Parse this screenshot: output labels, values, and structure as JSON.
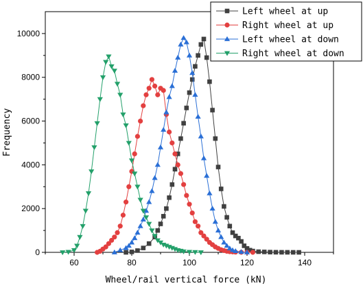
{
  "chart_data": {
    "type": "line",
    "title": "",
    "xlabel": "Wheel/rail vertical force (kN)",
    "ylabel": "Frequency",
    "xlim": [
      50,
      150
    ],
    "ylim": [
      0,
      11000
    ],
    "xticks": [
      60,
      80,
      100,
      120,
      140
    ],
    "yticks": [
      0,
      2000,
      4000,
      6000,
      8000,
      10000
    ],
    "grid": false,
    "legend_position": "top-right",
    "series": [
      {
        "name": "Left wheel at up",
        "color": "#404040",
        "marker": "square",
        "x": [
          78,
          80,
          82,
          84,
          86,
          88,
          89,
          90,
          91,
          92,
          93,
          94,
          95,
          96,
          97,
          98,
          99,
          100,
          101,
          102,
          103,
          104,
          105,
          106,
          107,
          108,
          109,
          110,
          111,
          112,
          113,
          114,
          115,
          116,
          117,
          118,
          119,
          120,
          121,
          122,
          124,
          126,
          128,
          130,
          132,
          134,
          136,
          138
        ],
        "y": [
          0,
          20,
          80,
          200,
          400,
          700,
          1000,
          1300,
          1650,
          2000,
          2500,
          3100,
          3800,
          4500,
          5200,
          5900,
          6600,
          7300,
          7900,
          8500,
          9000,
          9500,
          9750,
          8900,
          7800,
          6500,
          5200,
          3900,
          2900,
          2100,
          1600,
          1200,
          900,
          750,
          650,
          500,
          300,
          180,
          100,
          60,
          30,
          20,
          10,
          5,
          3,
          2,
          1,
          0
        ]
      },
      {
        "name": "Right wheel at up",
        "color": "#e34040",
        "marker": "circle",
        "x": [
          68,
          69,
          70,
          71,
          72,
          73,
          74,
          75,
          76,
          77,
          78,
          79,
          80,
          81,
          82,
          83,
          84,
          85,
          86,
          87,
          88,
          89,
          90,
          91,
          92,
          93,
          94,
          95,
          96,
          97,
          98,
          99,
          100,
          101,
          102,
          103,
          104,
          105,
          106,
          107,
          108,
          109,
          110,
          111,
          112,
          113,
          114,
          115,
          116,
          118,
          120,
          122
        ],
        "y": [
          0,
          50,
          150,
          250,
          400,
          550,
          700,
          900,
          1200,
          1700,
          2300,
          3000,
          3700,
          4500,
          5300,
          6000,
          6700,
          7200,
          7500,
          7900,
          7600,
          7200,
          7500,
          7400,
          6300,
          5500,
          5000,
          4500,
          4000,
          3600,
          3100,
          2600,
          2200,
          1800,
          1400,
          1200,
          900,
          750,
          600,
          450,
          350,
          250,
          180,
          120,
          80,
          50,
          30,
          20,
          10,
          5,
          2,
          0
        ]
      },
      {
        "name": "Left wheel at down",
        "color": "#2a6fd6",
        "marker": "triangle-up",
        "x": [
          74,
          76,
          78,
          79,
          80,
          81,
          82,
          83,
          84,
          85,
          86,
          87,
          88,
          89,
          90,
          91,
          92,
          93,
          94,
          95,
          96,
          97,
          98,
          99,
          100,
          101,
          102,
          103,
          104,
          105,
          106,
          107,
          108,
          109,
          110,
          111,
          112,
          113,
          114,
          115,
          116,
          118,
          120
        ],
        "y": [
          0,
          100,
          200,
          300,
          450,
          650,
          900,
          1200,
          1500,
          1900,
          2300,
          2800,
          3400,
          4000,
          4800,
          5600,
          6400,
          7100,
          7600,
          8300,
          8900,
          9500,
          9800,
          9600,
          9000,
          8200,
          7200,
          6200,
          5300,
          4300,
          3500,
          2700,
          2000,
          1400,
          1000,
          700,
          450,
          300,
          180,
          100,
          60,
          20,
          0
        ]
      },
      {
        "name": "Right wheel at down",
        "color": "#23a06a",
        "marker": "triangle-down",
        "x": [
          56,
          58,
          60,
          61,
          62,
          63,
          64,
          65,
          66,
          67,
          68,
          69,
          70,
          71,
          72,
          73,
          74,
          75,
          76,
          77,
          78,
          79,
          80,
          81,
          82,
          83,
          84,
          85,
          86,
          87,
          88,
          89,
          90,
          91,
          92,
          93,
          94,
          95,
          96,
          97,
          98,
          100,
          102,
          104
        ],
        "y": [
          0,
          20,
          100,
          300,
          700,
          1200,
          1900,
          2700,
          3700,
          4800,
          5900,
          7000,
          8000,
          8700,
          8950,
          8500,
          8300,
          7700,
          7200,
          6300,
          5800,
          5000,
          4200,
          3600,
          3000,
          2400,
          1900,
          1600,
          1300,
          1000,
          750,
          550,
          450,
          350,
          300,
          250,
          200,
          150,
          100,
          70,
          40,
          20,
          10,
          0
        ]
      }
    ]
  }
}
